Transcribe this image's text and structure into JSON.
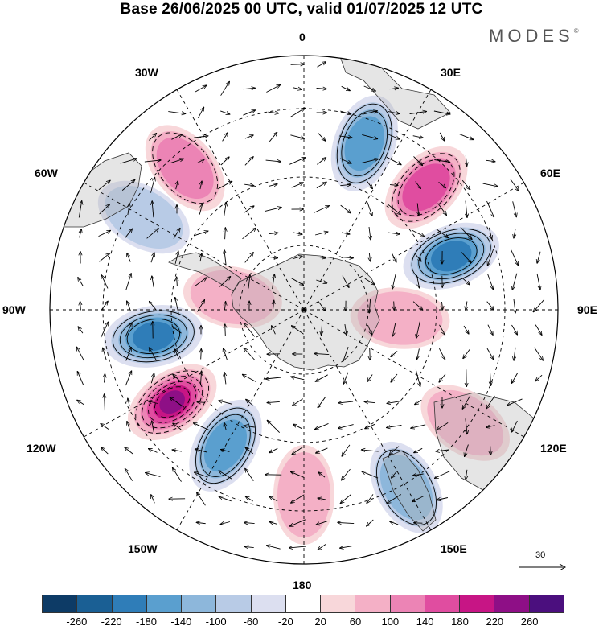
{
  "title": "Base 26/06/2025 00 UTC, valid 01/07/2025 12 UTC",
  "logo": {
    "text": "MODES",
    "mark": "©"
  },
  "longitude_labels": {
    "deg0": "0",
    "deg30e": "30E",
    "deg60e": "60E",
    "deg90e": "90E",
    "deg120e": "120E",
    "deg150e": "150E",
    "deg180": "180",
    "deg150w": "150W",
    "deg120w": "120W",
    "deg90w": "90W",
    "deg60w": "60W",
    "deg30w": "30W"
  },
  "reference_vector": {
    "label": "30"
  },
  "colorbar": {
    "colors": [
      "#0d3b66",
      "#1a5f94",
      "#2f7db8",
      "#5a9fcf",
      "#8db7db",
      "#b8cbe6",
      "#dcdff0",
      "#ffffff",
      "#f8d7da",
      "#f4b0c6",
      "#ec84b5",
      "#e04da0",
      "#c71585",
      "#8e0f86",
      "#4b0f7e"
    ],
    "tick_labels": [
      "-260",
      "-220",
      "-180",
      "-140",
      "-100",
      "-60",
      "-20",
      "20",
      "60",
      "100",
      "140",
      "180",
      "220",
      "260"
    ]
  },
  "map": {
    "projection": "south polar stereographic",
    "field": "geopotential height anomaly",
    "anomaly_centers": [
      {
        "lon": 20,
        "value": -120
      },
      {
        "lon": 45,
        "value": 140
      },
      {
        "lon": 70,
        "value": -190
      },
      {
        "lon": 95,
        "value": 60
      },
      {
        "lon": 125,
        "value": 60
      },
      {
        "lon": 150,
        "value": -100
      },
      {
        "lon": 180,
        "value": 40
      },
      {
        "lon": -150,
        "value": -130
      },
      {
        "lon": -125,
        "value": 210
      },
      {
        "lon": -100,
        "value": -170
      },
      {
        "lon": -80,
        "value": 40
      },
      {
        "lon": -40,
        "value": 100
      },
      {
        "lon": -60,
        "value": -60
      }
    ]
  }
}
